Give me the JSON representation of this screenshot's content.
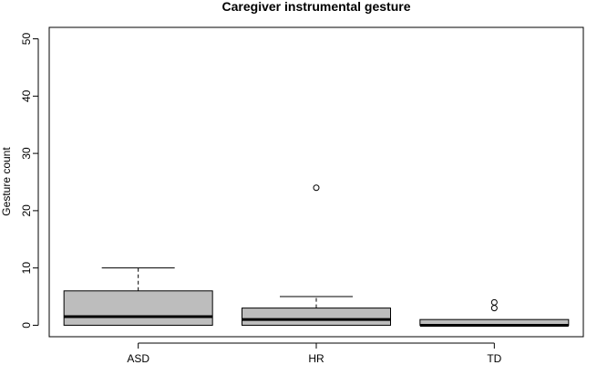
{
  "chart_data": {
    "type": "box",
    "title": "Caregiver instrumental gesture",
    "xlabel": "",
    "ylabel": "Gesture count",
    "ylim": [
      -2,
      52
    ],
    "yticks": [
      0,
      10,
      20,
      30,
      40,
      50
    ],
    "categories": [
      "ASD",
      "HR",
      "TD"
    ],
    "boxes": [
      {
        "category": "ASD",
        "whisker_low": 0,
        "q1": 0,
        "median": 1.5,
        "q3": 6,
        "whisker_high": 10,
        "outliers": []
      },
      {
        "category": "HR",
        "whisker_low": 0,
        "q1": 0,
        "median": 1,
        "q3": 3,
        "whisker_high": 5,
        "outliers": [
          24
        ]
      },
      {
        "category": "TD",
        "whisker_low": 0,
        "q1": 0,
        "median": 0,
        "q3": 1,
        "whisker_high": 1,
        "outliers": [
          3,
          4
        ]
      }
    ],
    "box_fill": "#bdbdbd",
    "grid": false,
    "legend": "none"
  }
}
